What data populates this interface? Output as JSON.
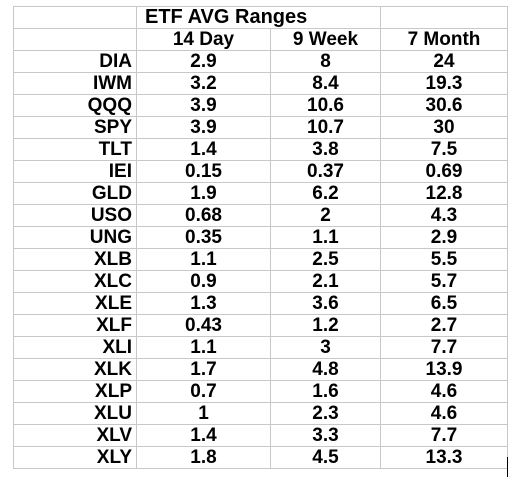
{
  "title": "ETF AVG Ranges",
  "columns": [
    "14 Day",
    "9 Week",
    "7 Month"
  ],
  "rows": [
    {
      "ticker": "DIA",
      "values": [
        "2.9",
        "8",
        "24"
      ]
    },
    {
      "ticker": "IWM",
      "values": [
        "3.2",
        "8.4",
        "19.3"
      ]
    },
    {
      "ticker": "QQQ",
      "values": [
        "3.9",
        "10.6",
        "30.6"
      ]
    },
    {
      "ticker": "SPY",
      "values": [
        "3.9",
        "10.7",
        "30"
      ]
    },
    {
      "ticker": "TLT",
      "values": [
        "1.4",
        "3.8",
        "7.5"
      ]
    },
    {
      "ticker": "IEI",
      "values": [
        "0.15",
        "0.37",
        "0.69"
      ]
    },
    {
      "ticker": "GLD",
      "values": [
        "1.9",
        "6.2",
        "12.8"
      ]
    },
    {
      "ticker": "USO",
      "values": [
        "0.68",
        "2",
        "4.3"
      ]
    },
    {
      "ticker": "UNG",
      "values": [
        "0.35",
        "1.1",
        "2.9"
      ]
    },
    {
      "ticker": "XLB",
      "values": [
        "1.1",
        "2.5",
        "5.5"
      ]
    },
    {
      "ticker": "XLC",
      "values": [
        "0.9",
        "2.1",
        "5.7"
      ]
    },
    {
      "ticker": "XLE",
      "values": [
        "1.3",
        "3.6",
        "6.5"
      ]
    },
    {
      "ticker": "XLF",
      "values": [
        "0.43",
        "1.2",
        "2.7"
      ]
    },
    {
      "ticker": "XLI",
      "values": [
        "1.1",
        "3",
        "7.7"
      ]
    },
    {
      "ticker": "XLK",
      "values": [
        "1.7",
        "4.8",
        "13.9"
      ]
    },
    {
      "ticker": "XLP",
      "values": [
        "0.7",
        "1.6",
        "4.6"
      ]
    },
    {
      "ticker": "XLU",
      "values": [
        "1",
        "2.3",
        "4.6"
      ]
    },
    {
      "ticker": "XLV",
      "values": [
        "1.4",
        "3.3",
        "7.7"
      ]
    },
    {
      "ticker": "XLY",
      "values": [
        "1.8",
        "4.5",
        "13.3"
      ]
    }
  ]
}
